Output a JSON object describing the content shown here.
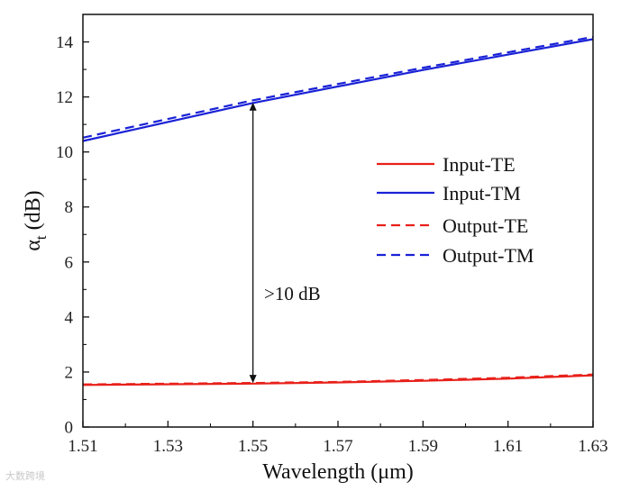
{
  "chart_data": {
    "type": "line",
    "xlabel": "Wavelength (μm)",
    "ylabel_symbol": "α",
    "ylabel_subscript": "t",
    "ylabel_unit": " (dB)",
    "xlim": [
      1.51,
      1.63
    ],
    "ylim": [
      0,
      15
    ],
    "xticks": [
      1.51,
      1.53,
      1.55,
      1.57,
      1.59,
      1.61,
      1.63
    ],
    "xtick_labels": [
      "1.51",
      "1.53",
      "1.55",
      "1.57",
      "1.59",
      "1.61",
      "1.63"
    ],
    "yticks": [
      0,
      2,
      4,
      6,
      8,
      10,
      12,
      14
    ],
    "ytick_labels": [
      "0",
      "2",
      "4",
      "6",
      "8",
      "10",
      "12",
      "14"
    ],
    "legend_position": "center-right",
    "series": [
      {
        "name": "Input-TE",
        "color": "#e8201a",
        "dash": "solid",
        "x": [
          1.51,
          1.55,
          1.57,
          1.59,
          1.61,
          1.63
        ],
        "y": [
          1.53,
          1.58,
          1.62,
          1.68,
          1.76,
          1.88
        ]
      },
      {
        "name": "Input-TM",
        "color": "#1a22d6",
        "dash": "solid",
        "x": [
          1.51,
          1.55,
          1.59,
          1.63
        ],
        "y": [
          10.4,
          11.78,
          12.98,
          14.1
        ]
      },
      {
        "name": "Output-TE",
        "color": "#e8201a",
        "dash": "dashed",
        "x": [
          1.51,
          1.55,
          1.57,
          1.59,
          1.61,
          1.63
        ],
        "y": [
          1.55,
          1.6,
          1.64,
          1.71,
          1.79,
          1.91
        ]
      },
      {
        "name": "Output-TM",
        "color": "#1a22d6",
        "dash": "dashed",
        "x": [
          1.51,
          1.55,
          1.59,
          1.63
        ],
        "y": [
          10.52,
          11.88,
          13.06,
          14.18
        ]
      }
    ],
    "annotation": {
      "text": ">10 dB",
      "x": 1.55,
      "y_from": 1.6,
      "y_to": 11.8
    }
  },
  "watermark": "大数跨境"
}
